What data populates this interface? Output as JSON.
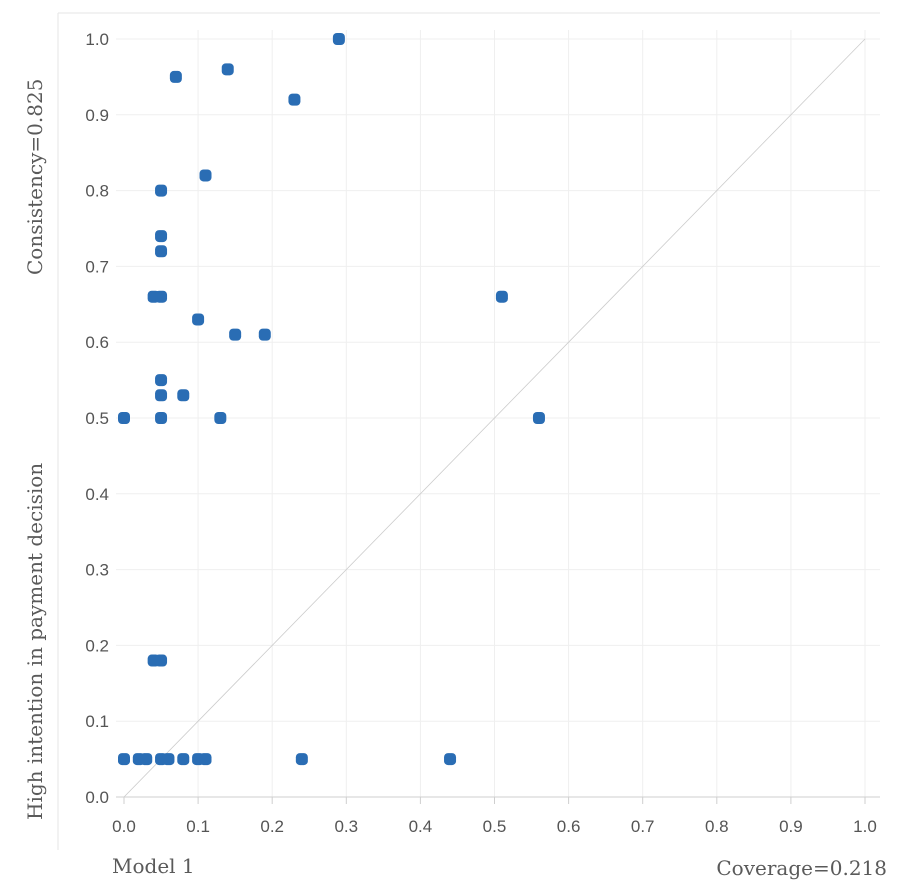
{
  "header": {
    "y_note": "Consistency=0.825",
    "y_title": "High intention in payment decision",
    "model_label": "Model 1",
    "coverage_label": "Coverage=0.218"
  },
  "colors": {
    "point": "#2a6db4",
    "grid": "#efefef",
    "diagonal": "#cccccc",
    "text": "#555555"
  },
  "chart_data": {
    "type": "scatter",
    "title": "",
    "xlabel": "Coverage=0.218",
    "ylabel": "High intention in payment decision",
    "xlim": [
      0,
      1
    ],
    "ylim": [
      0,
      1
    ],
    "x_ticks": [
      "0.0",
      "0.1",
      "0.2",
      "0.3",
      "0.4",
      "0.5",
      "0.6",
      "0.7",
      "0.8",
      "0.9",
      "1.0"
    ],
    "y_ticks": [
      "0.0",
      "0.1",
      "0.2",
      "0.3",
      "0.4",
      "0.5",
      "0.6",
      "0.7",
      "0.8",
      "0.9",
      "1.0"
    ],
    "grid": true,
    "reference_line": "y = x",
    "points": [
      {
        "x": 0.29,
        "y": 1.0
      },
      {
        "x": 0.14,
        "y": 0.96
      },
      {
        "x": 0.07,
        "y": 0.95
      },
      {
        "x": 0.23,
        "y": 0.92
      },
      {
        "x": 0.11,
        "y": 0.82
      },
      {
        "x": 0.05,
        "y": 0.8
      },
      {
        "x": 0.05,
        "y": 0.74
      },
      {
        "x": 0.05,
        "y": 0.72
      },
      {
        "x": 0.04,
        "y": 0.66
      },
      {
        "x": 0.05,
        "y": 0.66
      },
      {
        "x": 0.51,
        "y": 0.66
      },
      {
        "x": 0.1,
        "y": 0.63
      },
      {
        "x": 0.15,
        "y": 0.61
      },
      {
        "x": 0.19,
        "y": 0.61
      },
      {
        "x": 0.05,
        "y": 0.55
      },
      {
        "x": 0.05,
        "y": 0.53
      },
      {
        "x": 0.08,
        "y": 0.53
      },
      {
        "x": 0.0,
        "y": 0.5
      },
      {
        "x": 0.05,
        "y": 0.5
      },
      {
        "x": 0.13,
        "y": 0.5
      },
      {
        "x": 0.56,
        "y": 0.5
      },
      {
        "x": 0.04,
        "y": 0.18
      },
      {
        "x": 0.05,
        "y": 0.18
      },
      {
        "x": 0.0,
        "y": 0.05
      },
      {
        "x": 0.02,
        "y": 0.05
      },
      {
        "x": 0.03,
        "y": 0.05
      },
      {
        "x": 0.05,
        "y": 0.05
      },
      {
        "x": 0.06,
        "y": 0.05
      },
      {
        "x": 0.08,
        "y": 0.05
      },
      {
        "x": 0.1,
        "y": 0.05
      },
      {
        "x": 0.11,
        "y": 0.05
      },
      {
        "x": 0.24,
        "y": 0.05
      },
      {
        "x": 0.44,
        "y": 0.05
      }
    ]
  }
}
